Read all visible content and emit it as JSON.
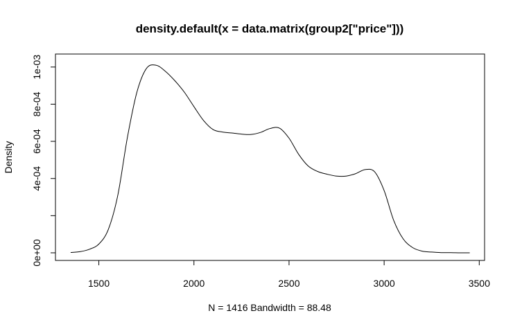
{
  "chart_data": {
    "type": "line",
    "title": "density.default(x = data.matrix(group2[\"price\"]))",
    "xlabel": "N = 1416   Bandwidth = 88.48",
    "ylabel": "Density",
    "xlim": [
      1272,
      3528
    ],
    "ylim": [
      -4.1e-05,
      0.00107
    ],
    "x_ticks": [
      1500,
      2000,
      2500,
      3000,
      3500
    ],
    "x_tick_labels": [
      "1500",
      "2000",
      "2500",
      "3000",
      "3500"
    ],
    "y_ticks": [
      0,
      0.0002,
      0.0004,
      0.0006,
      0.0008,
      0.001
    ],
    "y_tick_labels": [
      "0e+00",
      "",
      "4e-04",
      "6e-04",
      "8e-04",
      "1e-03"
    ],
    "grid": false,
    "series": [
      {
        "x": [
          1352,
          1400,
          1450,
          1500,
          1550,
          1600,
          1650,
          1700,
          1750,
          1800,
          1850,
          1900,
          1950,
          2000,
          2050,
          2100,
          2150,
          2200,
          2250,
          2300,
          2350,
          2400,
          2450,
          2500,
          2550,
          2600,
          2650,
          2700,
          2750,
          2800,
          2850,
          2900,
          2950,
          3000,
          3050,
          3100,
          3150,
          3200,
          3250,
          3300,
          3350,
          3400,
          3450
        ],
        "y": [
          2e-06,
          6e-06,
          1.9e-05,
          4.7e-05,
          0.000126,
          0.000311,
          0.00062,
          0.000864,
          0.000992,
          0.00101,
          0.000977,
          0.000926,
          0.000864,
          0.000787,
          0.000713,
          0.000664,
          0.00065,
          0.000645,
          0.000639,
          0.000637,
          0.000648,
          0.000669,
          0.000671,
          0.000617,
          0.000531,
          0.000468,
          0.000438,
          0.000423,
          0.000413,
          0.000413,
          0.000426,
          0.000448,
          0.000436,
          0.000335,
          0.000175,
          7.5e-05,
          2.8e-05,
          9e-06,
          4e-06,
          1e-06,
          1e-06,
          0.0,
          0.0
        ]
      }
    ]
  }
}
